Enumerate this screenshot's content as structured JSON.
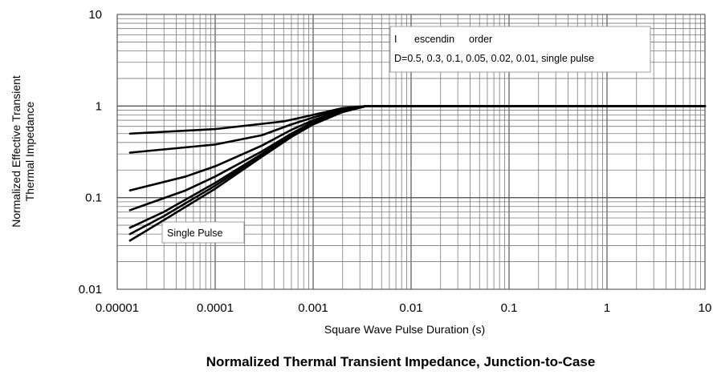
{
  "chart_data": {
    "type": "line",
    "title": "Normalized Thermal Transient Impedance, Junction-to-Case",
    "xlabel": "Square Wave Pulse Duration (s)",
    "ylabel": [
      "Normalized Effective Transient",
      "Thermal Impedance"
    ],
    "xscale": "log",
    "yscale": "log",
    "xlim": [
      1e-05,
      10
    ],
    "ylim": [
      0.01,
      10
    ],
    "grid": true,
    "x_tick_labels": [
      "0.00001",
      "0.0001",
      "0.001",
      "0.01",
      "0.1",
      "1",
      "10"
    ],
    "y_tick_labels": [
      "10",
      "1",
      "0.1",
      "0.01"
    ],
    "legend": {
      "position": "top-right",
      "line1": [
        "I",
        "escendin",
        "order"
      ],
      "line2": "D=0.5, 0.3, 0.1, 0.05, 0.02, 0.01, single pulse"
    },
    "annotation": "Single Pulse",
    "series_color": "#000000",
    "series": [
      {
        "x": [
          1.35e-05,
          0.0001,
          0.0005,
          0.001,
          0.002,
          0.0035,
          10
        ],
        "y": [
          0.5,
          0.56,
          0.68,
          0.8,
          0.95,
          1.0,
          1.0
        ]
      },
      {
        "x": [
          1.35e-05,
          0.0001,
          0.0003,
          0.0006,
          0.001,
          0.002,
          0.0035,
          10
        ],
        "y": [
          0.31,
          0.38,
          0.48,
          0.63,
          0.75,
          0.93,
          1.0,
          1.0
        ]
      },
      {
        "x": [
          1.35e-05,
          5e-05,
          0.0001,
          0.0003,
          0.0006,
          0.001,
          0.002,
          0.0035,
          10
        ],
        "y": [
          0.12,
          0.17,
          0.22,
          0.37,
          0.55,
          0.7,
          0.9,
          1.0,
          1.0
        ]
      },
      {
        "x": [
          1.35e-05,
          5e-05,
          0.0001,
          0.0003,
          0.0006,
          0.001,
          0.002,
          0.0035,
          10
        ],
        "y": [
          0.073,
          0.12,
          0.17,
          0.32,
          0.5,
          0.67,
          0.89,
          1.0,
          1.0
        ]
      },
      {
        "x": [
          1.35e-05,
          3e-05,
          0.0001,
          0.0003,
          0.0006,
          0.001,
          0.002,
          0.0035,
          10
        ],
        "y": [
          0.047,
          0.07,
          0.145,
          0.3,
          0.48,
          0.65,
          0.88,
          1.0,
          1.0
        ]
      },
      {
        "x": [
          1.35e-05,
          3e-05,
          0.0001,
          0.0003,
          0.0006,
          0.001,
          0.002,
          0.0035,
          10
        ],
        "y": [
          0.04,
          0.063,
          0.135,
          0.29,
          0.47,
          0.64,
          0.87,
          1.0,
          1.0
        ]
      },
      {
        "x": [
          1.35e-05,
          3e-05,
          0.0001,
          0.0003,
          0.0006,
          0.001,
          0.002,
          0.0035,
          10
        ],
        "y": [
          0.034,
          0.057,
          0.125,
          0.28,
          0.46,
          0.63,
          0.86,
          1.0,
          1.0
        ]
      }
    ]
  }
}
